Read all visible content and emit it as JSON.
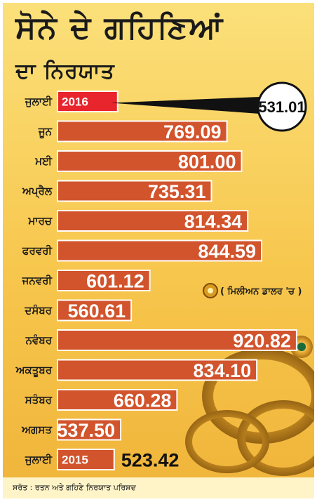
{
  "title_line1": "ਸੋਨੇ ਦੇ ਗਹਿਣਿਆਂ",
  "title_line2": "ਦਾ ਨਿਰਯਾਤ",
  "unit_note": "( ਮਿਲੀਅਨ ਡਾਲਰ 'ਚ )",
  "source": "ਸਰੋਤ : ਰਤਨ ਅਤੇ ਗਹਿਣੇ ਨਿਰਯਾਤ ਪਰਿਸ਼ਦ",
  "colors": {
    "bar": "#d2542c",
    "highlight_bar": "#e8242c",
    "background": "#f7c64c",
    "category_text": "#1a1a1a",
    "highlight_category_text": "#d0202a"
  },
  "chart_data": {
    "type": "bar",
    "orientation": "horizontal",
    "categories": [
      "ਜੁਲਾਈ",
      "ਜੂਨ",
      "ਮਈ",
      "ਅਪ੍ਰੈਲ",
      "ਮਾਰਚ",
      "ਫਰਵਰੀ",
      "ਜਨਵਰੀ",
      "ਦਸੰਬਰ",
      "ਨਵੰਬਰ",
      "ਅਕਤੂਬਰ",
      "ਸਤੰਬਰ",
      "ਅਗਸਤ",
      "ਜੁਲਾਈ"
    ],
    "values": [
      531.01,
      769.09,
      801.0,
      735.31,
      814.34,
      844.59,
      601.12,
      560.61,
      920.82,
      834.1,
      660.28,
      537.5,
      523.42
    ],
    "value_labels": [
      "531.01",
      "769.09",
      "801.00",
      "735.31",
      "814.34",
      "844.59",
      "601.12",
      "560.61",
      "920.82",
      "834.10",
      "660.28",
      "537.50",
      "523.42"
    ],
    "year_labels": [
      "2016",
      "",
      "",
      "",
      "",
      "",
      "",
      "",
      "",
      "",
      "",
      "",
      "2015"
    ],
    "highlight_index": 0,
    "xlim": [
      400,
      950
    ],
    "grid": false,
    "legend": "none"
  }
}
